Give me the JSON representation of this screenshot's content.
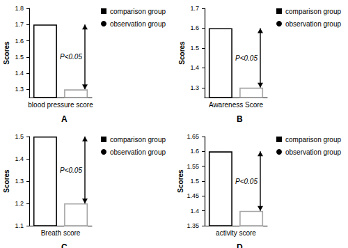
{
  "chart_data": [
    {
      "type": "bar",
      "panel": "A",
      "categories": [
        "blood pressure score"
      ],
      "ylabel": "Scores",
      "ylim": [
        1.25,
        1.8
      ],
      "yticks": [
        1.3,
        1.4,
        1.5,
        1.6,
        1.7,
        1.8
      ],
      "legend": "right",
      "annotation": "P<0.05",
      "series": [
        {
          "name": "comparison group",
          "color": "#000000",
          "marker": "square",
          "values": [
            1.7
          ]
        },
        {
          "name": "observation group",
          "color": "#a6a6a6",
          "marker": "circle",
          "values": [
            1.3
          ]
        }
      ]
    },
    {
      "type": "bar",
      "panel": "B",
      "categories": [
        "Awareness Score"
      ],
      "ylabel": "Scores",
      "ylim": [
        1.25,
        1.7
      ],
      "yticks": [
        1.3,
        1.4,
        1.5,
        1.6,
        1.7
      ],
      "legend": "right",
      "annotation": "P<0.05",
      "series": [
        {
          "name": "comparison group",
          "color": "#000000",
          "marker": "square",
          "values": [
            1.6
          ]
        },
        {
          "name": "observation group",
          "color": "#a6a6a6",
          "marker": "circle",
          "values": [
            1.3
          ]
        }
      ]
    },
    {
      "type": "bar",
      "panel": "C",
      "categories": [
        "Breath score"
      ],
      "ylabel": "Scores",
      "ylim": [
        1.1,
        1.5
      ],
      "yticks": [
        1.1,
        1.2,
        1.3,
        1.4,
        1.5
      ],
      "legend": "right",
      "annotation": "P<0.05",
      "series": [
        {
          "name": "comparison group",
          "color": "#000000",
          "marker": "square",
          "values": [
            1.5
          ]
        },
        {
          "name": "observation group",
          "color": "#a6a6a6",
          "marker": "circle",
          "values": [
            1.2
          ]
        }
      ]
    },
    {
      "type": "bar",
      "panel": "D",
      "categories": [
        "activity score"
      ],
      "ylabel": "Scores",
      "ylim": [
        1.35,
        1.65
      ],
      "yticks": [
        1.35,
        1.4,
        1.45,
        1.5,
        1.55,
        1.6,
        1.65
      ],
      "legend": "right",
      "annotation": "P<0.05",
      "series": [
        {
          "name": "comparison group",
          "color": "#000000",
          "marker": "square",
          "values": [
            1.6
          ]
        },
        {
          "name": "observation group",
          "color": "#a6a6a6",
          "marker": "circle",
          "values": [
            1.4
          ]
        }
      ]
    }
  ]
}
